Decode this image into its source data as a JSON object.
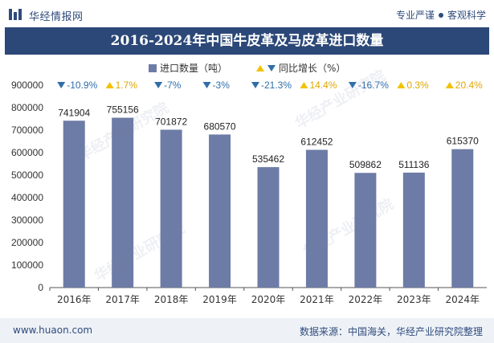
{
  "header": {
    "brand": "华经情报网",
    "slogan_left": "专业严谨",
    "slogan_right": "客观科学"
  },
  "title": "2016-2024年中国牛皮革及马皮革进口数量",
  "legend": {
    "series1": "进口数量（吨）",
    "series2": "同比增长（%）"
  },
  "watermark": "华经产业研究院",
  "footer": {
    "url": "www.huaon.com",
    "source": "数据来源：中国海关，华经产业研究院整理"
  },
  "colors": {
    "bar": "#6d7ca6",
    "down": "#2f6ea9",
    "up": "#f2c200",
    "title_bg": "#2c4878"
  },
  "chart_data": {
    "type": "bar",
    "categories": [
      "2016年",
      "2017年",
      "2018年",
      "2019年",
      "2020年",
      "2021年",
      "2022年",
      "2023年",
      "2024年"
    ],
    "series": [
      {
        "name": "进口数量（吨）",
        "values": [
          741904,
          755156,
          701872,
          680570,
          535462,
          612452,
          509862,
          511136,
          615370
        ]
      },
      {
        "name": "同比增长（%）",
        "values": [
          -10.9,
          1.7,
          -7,
          -3,
          -21.3,
          14.4,
          -16.7,
          0.3,
          20.4
        ]
      }
    ],
    "growth_labels": [
      "-10.9%",
      "1.7%",
      "-7%",
      "-3%",
      "-21.3%",
      "14.4%",
      "-16.7%",
      "0.3%",
      "20.4%"
    ],
    "yticks": [
      "0",
      "100000",
      "200000",
      "300000",
      "400000",
      "500000",
      "600000",
      "700000",
      "800000",
      "900000"
    ],
    "ylim": [
      0,
      900000
    ],
    "grid": false,
    "legend_position": "top-center"
  }
}
